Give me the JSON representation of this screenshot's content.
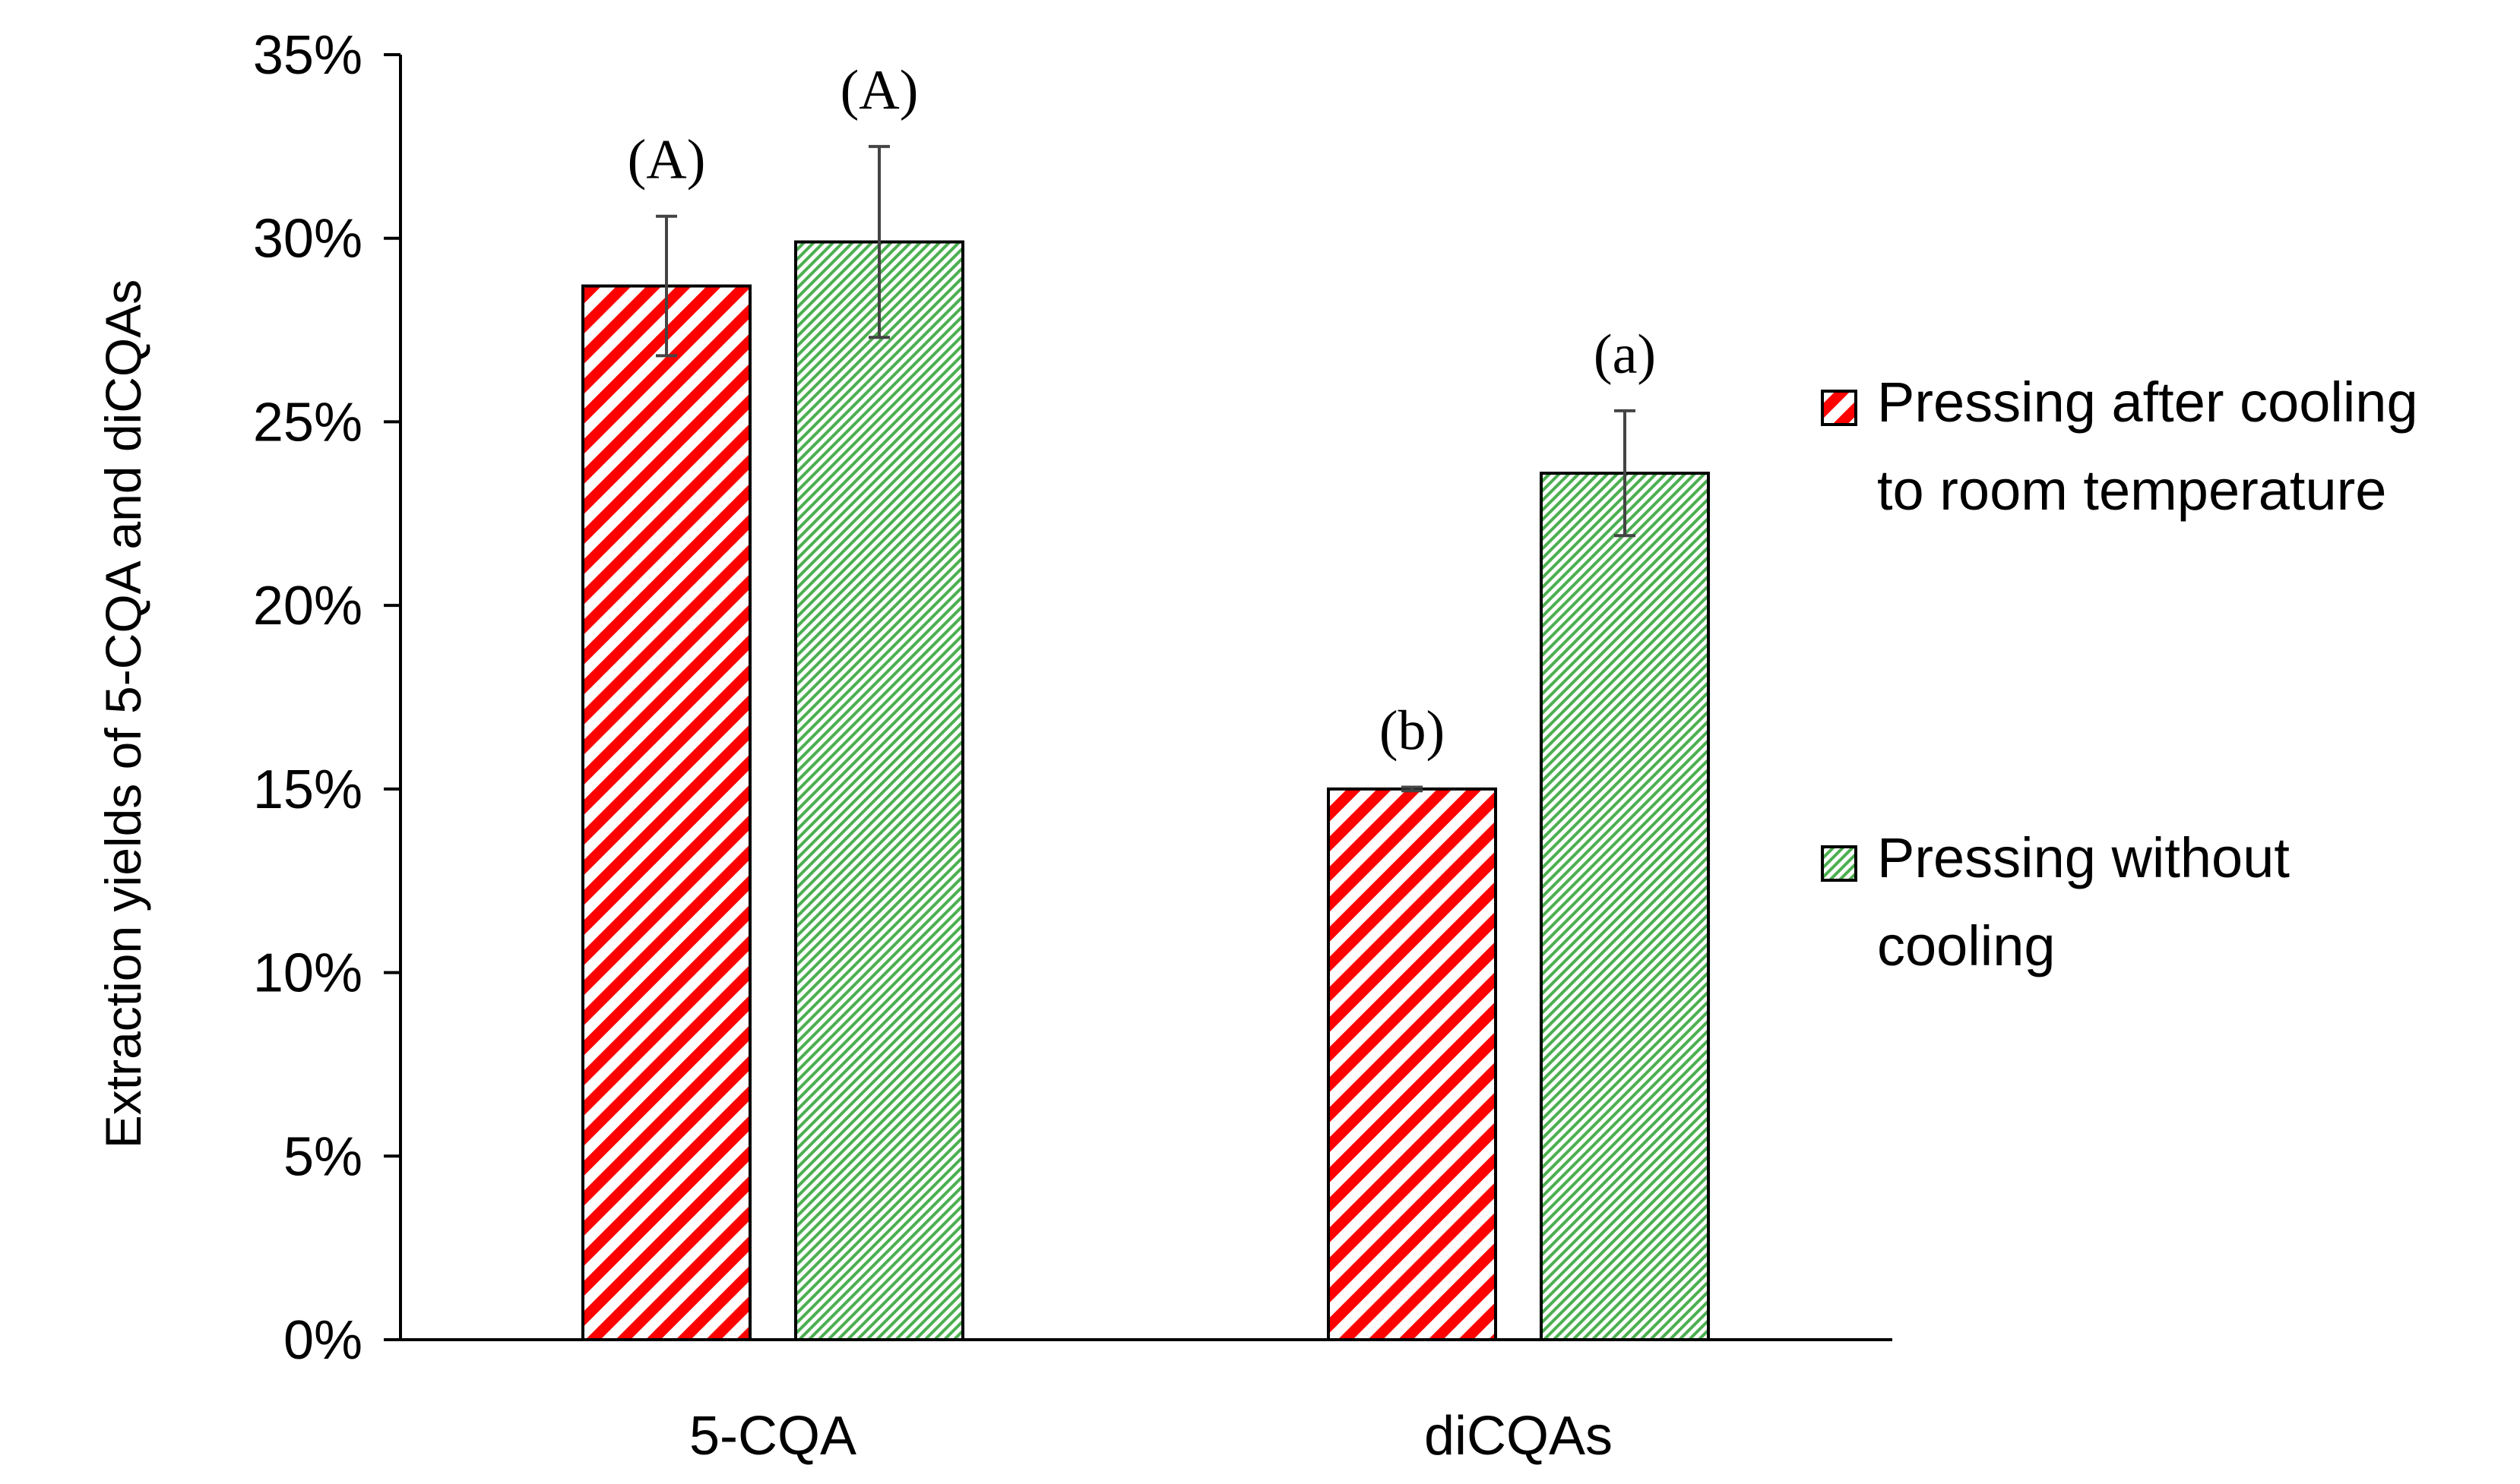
{
  "chart_data": {
    "type": "bar",
    "categories": [
      "5-CQA",
      "diCQAs"
    ],
    "series": [
      {
        "name": "Pressing after cooling to room temperature",
        "legend_lines": [
          "Pressing after cooling",
          "to room temperature"
        ],
        "values": [
          28.7,
          15.0
        ],
        "errors": [
          1.9,
          0.05
        ],
        "sig_labels": [
          "(A)",
          "(b)"
        ],
        "color": "#ff0000",
        "pattern": "wide-diagonal-stripes"
      },
      {
        "name": "Pressing without cooling",
        "legend_lines": [
          "Pressing without",
          "cooling"
        ],
        "values": [
          29.9,
          23.6
        ],
        "errors": [
          2.6,
          1.7
        ],
        "sig_labels": [
          "(A)",
          "(a)"
        ],
        "color": "#4caf50",
        "pattern": "fine-diagonal-hatch"
      }
    ],
    "ylabel": "Extraction yields of 5-CQA and diCQAs",
    "xlabel": "",
    "ylim": [
      0,
      35
    ],
    "yticks": [
      0,
      5,
      10,
      15,
      20,
      25,
      30,
      35
    ],
    "ytick_labels": [
      "0%",
      "5%",
      "10%",
      "15%",
      "20%",
      "25%",
      "30%",
      "35%"
    ],
    "grid": false,
    "legend_position": "right"
  }
}
